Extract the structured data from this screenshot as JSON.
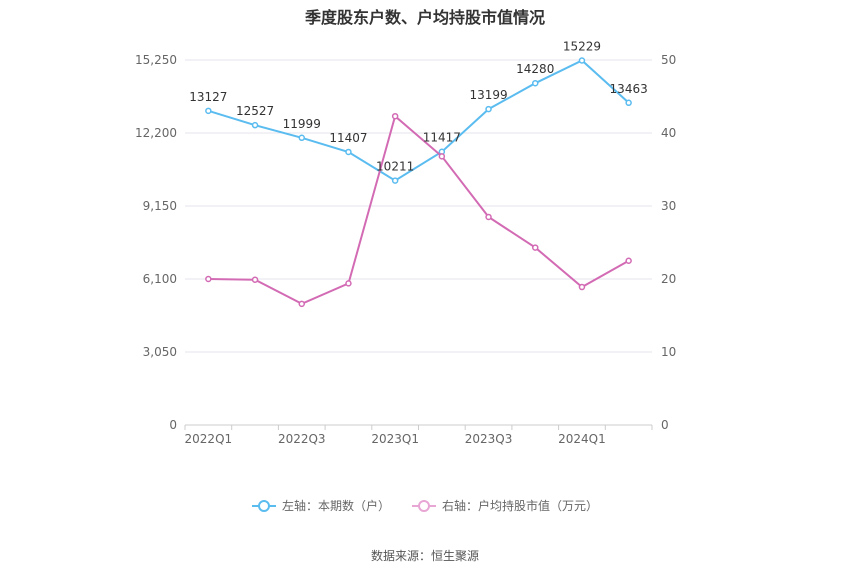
{
  "chart_data": {
    "type": "line",
    "title": "季度股东户数、户均持股市值情况",
    "x": [
      "2022Q1",
      "2022Q2",
      "2022Q3",
      "2022Q4",
      "2023Q1",
      "2023Q2",
      "2023Q3",
      "2023Q4",
      "2024Q1",
      "2024Q2"
    ],
    "x_tick_labels": [
      "2022Q1",
      "2022Q3",
      "2023Q1",
      "2023Q3",
      "2024Q1"
    ],
    "y_left": {
      "ticks": [
        "0",
        "3,050",
        "6,100",
        "9,150",
        "12,200",
        "15,250"
      ],
      "range": [
        0,
        15250
      ]
    },
    "y_right": {
      "ticks": [
        "0",
        "10",
        "20",
        "30",
        "40",
        "50"
      ],
      "range": [
        0,
        50
      ]
    },
    "series": [
      {
        "name": "左轴：本期数（户）",
        "axis": "left",
        "color": "#5bbcf0",
        "values": [
          13127,
          12527,
          11999,
          11407,
          10211,
          11417,
          13199,
          14280,
          15229,
          13463
        ],
        "labels": [
          "13127",
          "12527",
          "11999",
          "11407",
          "10211",
          "11417",
          "13199",
          "14280",
          "15229",
          "13463"
        ]
      },
      {
        "name": "右轴：户均持股市值（万元）",
        "axis": "right",
        "color": "#d36bb4",
        "values": [
          20.0,
          19.9,
          16.6,
          19.4,
          42.3,
          36.8,
          28.5,
          24.3,
          18.9,
          22.5
        ]
      }
    ],
    "grid": true,
    "legend_position": "bottom"
  },
  "legend": [
    {
      "label": "左轴：本期数（户）",
      "color": "#5bbcf0"
    },
    {
      "label": "右轴：户均持股市值（万元）",
      "color": "#e8a6d4"
    }
  ],
  "source": "数据来源：恒生聚源"
}
